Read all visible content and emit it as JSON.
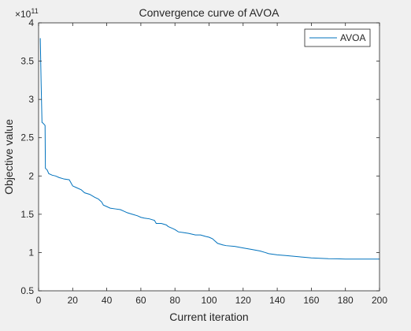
{
  "chart_data": {
    "type": "line",
    "title": "Convergence curve of AVOA",
    "xlabel": "Current iteration",
    "ylabel": "Objective value",
    "y_exponent_label": "×10",
    "y_exponent_power": "11",
    "xlim": [
      0,
      200
    ],
    "ylim": [
      0.5,
      4
    ],
    "xticks": [
      0,
      20,
      40,
      60,
      80,
      100,
      120,
      140,
      160,
      180,
      200
    ],
    "yticks": [
      0.5,
      1,
      1.5,
      2,
      2.5,
      3,
      3.5,
      4
    ],
    "ytick_labels": [
      "0.5",
      "1",
      "1.5",
      "2",
      "2.5",
      "3",
      "3.5",
      "4"
    ],
    "grid": false,
    "legend_position": "top-right",
    "series": [
      {
        "name": "AVOA",
        "color": "#0072bd",
        "x": [
          1,
          1.5,
          2,
          2.6,
          3,
          3.8,
          4,
          5,
          6,
          8,
          10,
          12,
          15,
          18,
          20,
          22,
          25,
          27,
          30,
          33,
          35,
          37,
          38,
          40,
          42,
          45,
          48,
          50,
          52,
          55,
          58,
          60,
          62,
          65,
          68,
          69,
          72,
          75,
          76,
          78,
          80,
          82,
          85,
          88,
          90,
          92,
          95,
          98,
          100,
          102,
          105,
          108,
          110,
          115,
          120,
          125,
          130,
          133,
          135,
          140,
          145,
          150,
          155,
          160,
          165,
          170,
          175,
          180,
          185,
          190,
          195,
          200
        ],
        "y": [
          3.8,
          3.2,
          2.7,
          2.69,
          2.68,
          2.66,
          2.1,
          2.08,
          2.03,
          2.01,
          2.0,
          1.98,
          1.96,
          1.95,
          1.87,
          1.85,
          1.82,
          1.78,
          1.76,
          1.72,
          1.7,
          1.66,
          1.62,
          1.6,
          1.58,
          1.57,
          1.56,
          1.54,
          1.52,
          1.5,
          1.48,
          1.46,
          1.45,
          1.44,
          1.42,
          1.38,
          1.38,
          1.36,
          1.34,
          1.32,
          1.3,
          1.27,
          1.26,
          1.25,
          1.24,
          1.23,
          1.23,
          1.21,
          1.2,
          1.18,
          1.12,
          1.1,
          1.09,
          1.08,
          1.06,
          1.04,
          1.02,
          1.0,
          0.985,
          0.97,
          0.96,
          0.95,
          0.94,
          0.93,
          0.925,
          0.92,
          0.918,
          0.915,
          0.915,
          0.915,
          0.915,
          0.915
        ]
      }
    ]
  }
}
